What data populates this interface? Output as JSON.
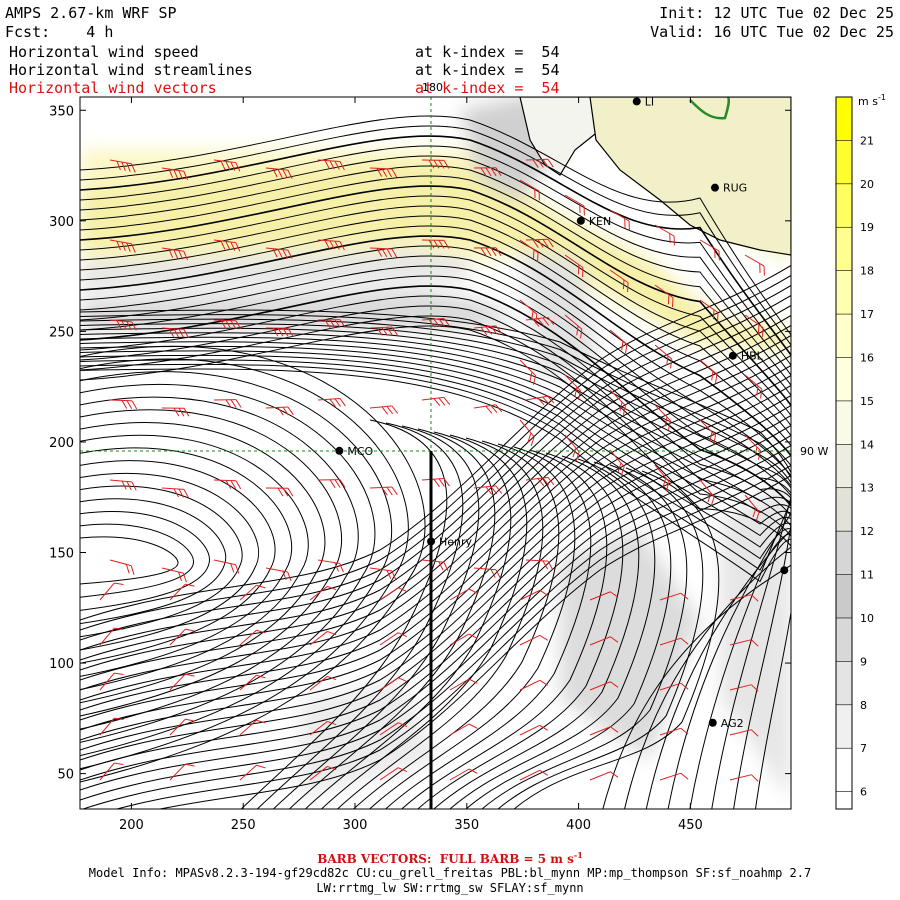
{
  "header": {
    "title": "AMPS 2.67-km WRF SP",
    "init": "Init: 12 UTC Tue 02 Dec 25",
    "fcst": "Fcst:    4 h",
    "valid": "Valid: 16 UTC Tue 02 Dec 25",
    "fields": [
      {
        "name": "Horizontal wind speed",
        "level": "at k-index =  54"
      },
      {
        "name": "Horizontal wind streamlines",
        "level": "at k-index =  54"
      },
      {
        "name": "Horizontal wind vectors",
        "level": "at k-index =  54"
      }
    ]
  },
  "map": {
    "x_ticks": [
      "200",
      "250",
      "300",
      "350",
      "400",
      "450"
    ],
    "x_tick_values": [
      200,
      250,
      300,
      350,
      400,
      450
    ],
    "x_range": [
      177,
      495
    ],
    "y_ticks": [
      "50",
      "100",
      "150",
      "200",
      "250",
      "300",
      "350"
    ],
    "y_tick_values": [
      50,
      100,
      150,
      200,
      250,
      300,
      350
    ],
    "y_range": [
      34,
      356
    ],
    "meridian_label": "180",
    "parallel_label": "90 W",
    "stations": [
      {
        "name": "MCO",
        "x": 293,
        "y": 196
      },
      {
        "name": "Henry",
        "x": 334,
        "y": 155
      },
      {
        "name": "KEN",
        "x": 401,
        "y": 300
      },
      {
        "name": "RUG",
        "x": 461,
        "y": 315
      },
      {
        "name": "HBL",
        "x": 469,
        "y": 239
      },
      {
        "name": "AG2",
        "x": 460,
        "y": 73
      },
      {
        "name": "LI",
        "x": 426,
        "y": 354
      },
      {
        "name": "",
        "x": 492,
        "y": 142
      }
    ]
  },
  "colorbar": {
    "unit": "m s",
    "unit_exp": "-1",
    "labels": [
      "21",
      "20",
      "19",
      "18",
      "17",
      "16",
      "15",
      "14",
      "13",
      "12",
      "11",
      "10",
      "9",
      "8",
      "7",
      "6"
    ],
    "colors": [
      "#ffff00",
      "#ffff30",
      "#ffff60",
      "#ffff90",
      "#ffffb0",
      "#ffffcc",
      "#ffffe0",
      "#fafae8",
      "#eeeee0",
      "#e2e2d8",
      "#d6d6d6",
      "#cacaca",
      "#d8d8d8",
      "#e4e4e4",
      "#f0f0f0",
      "#ffffff"
    ]
  },
  "footer": {
    "barb": "BARB VECTORS:  FULL BARB = 5 m s",
    "barb_exp": "-1",
    "model_info": "Model Info: MPASv8.2.3-194-gf29cd82c CU:cu_grell_freitas PBL:bl_mynn MP:mp_thompson SF:sf_noahmp 2.7",
    "model_info2": "LW:rrtmg_lw SW:rrtmg_sw SFLAY:sf_mynn"
  }
}
